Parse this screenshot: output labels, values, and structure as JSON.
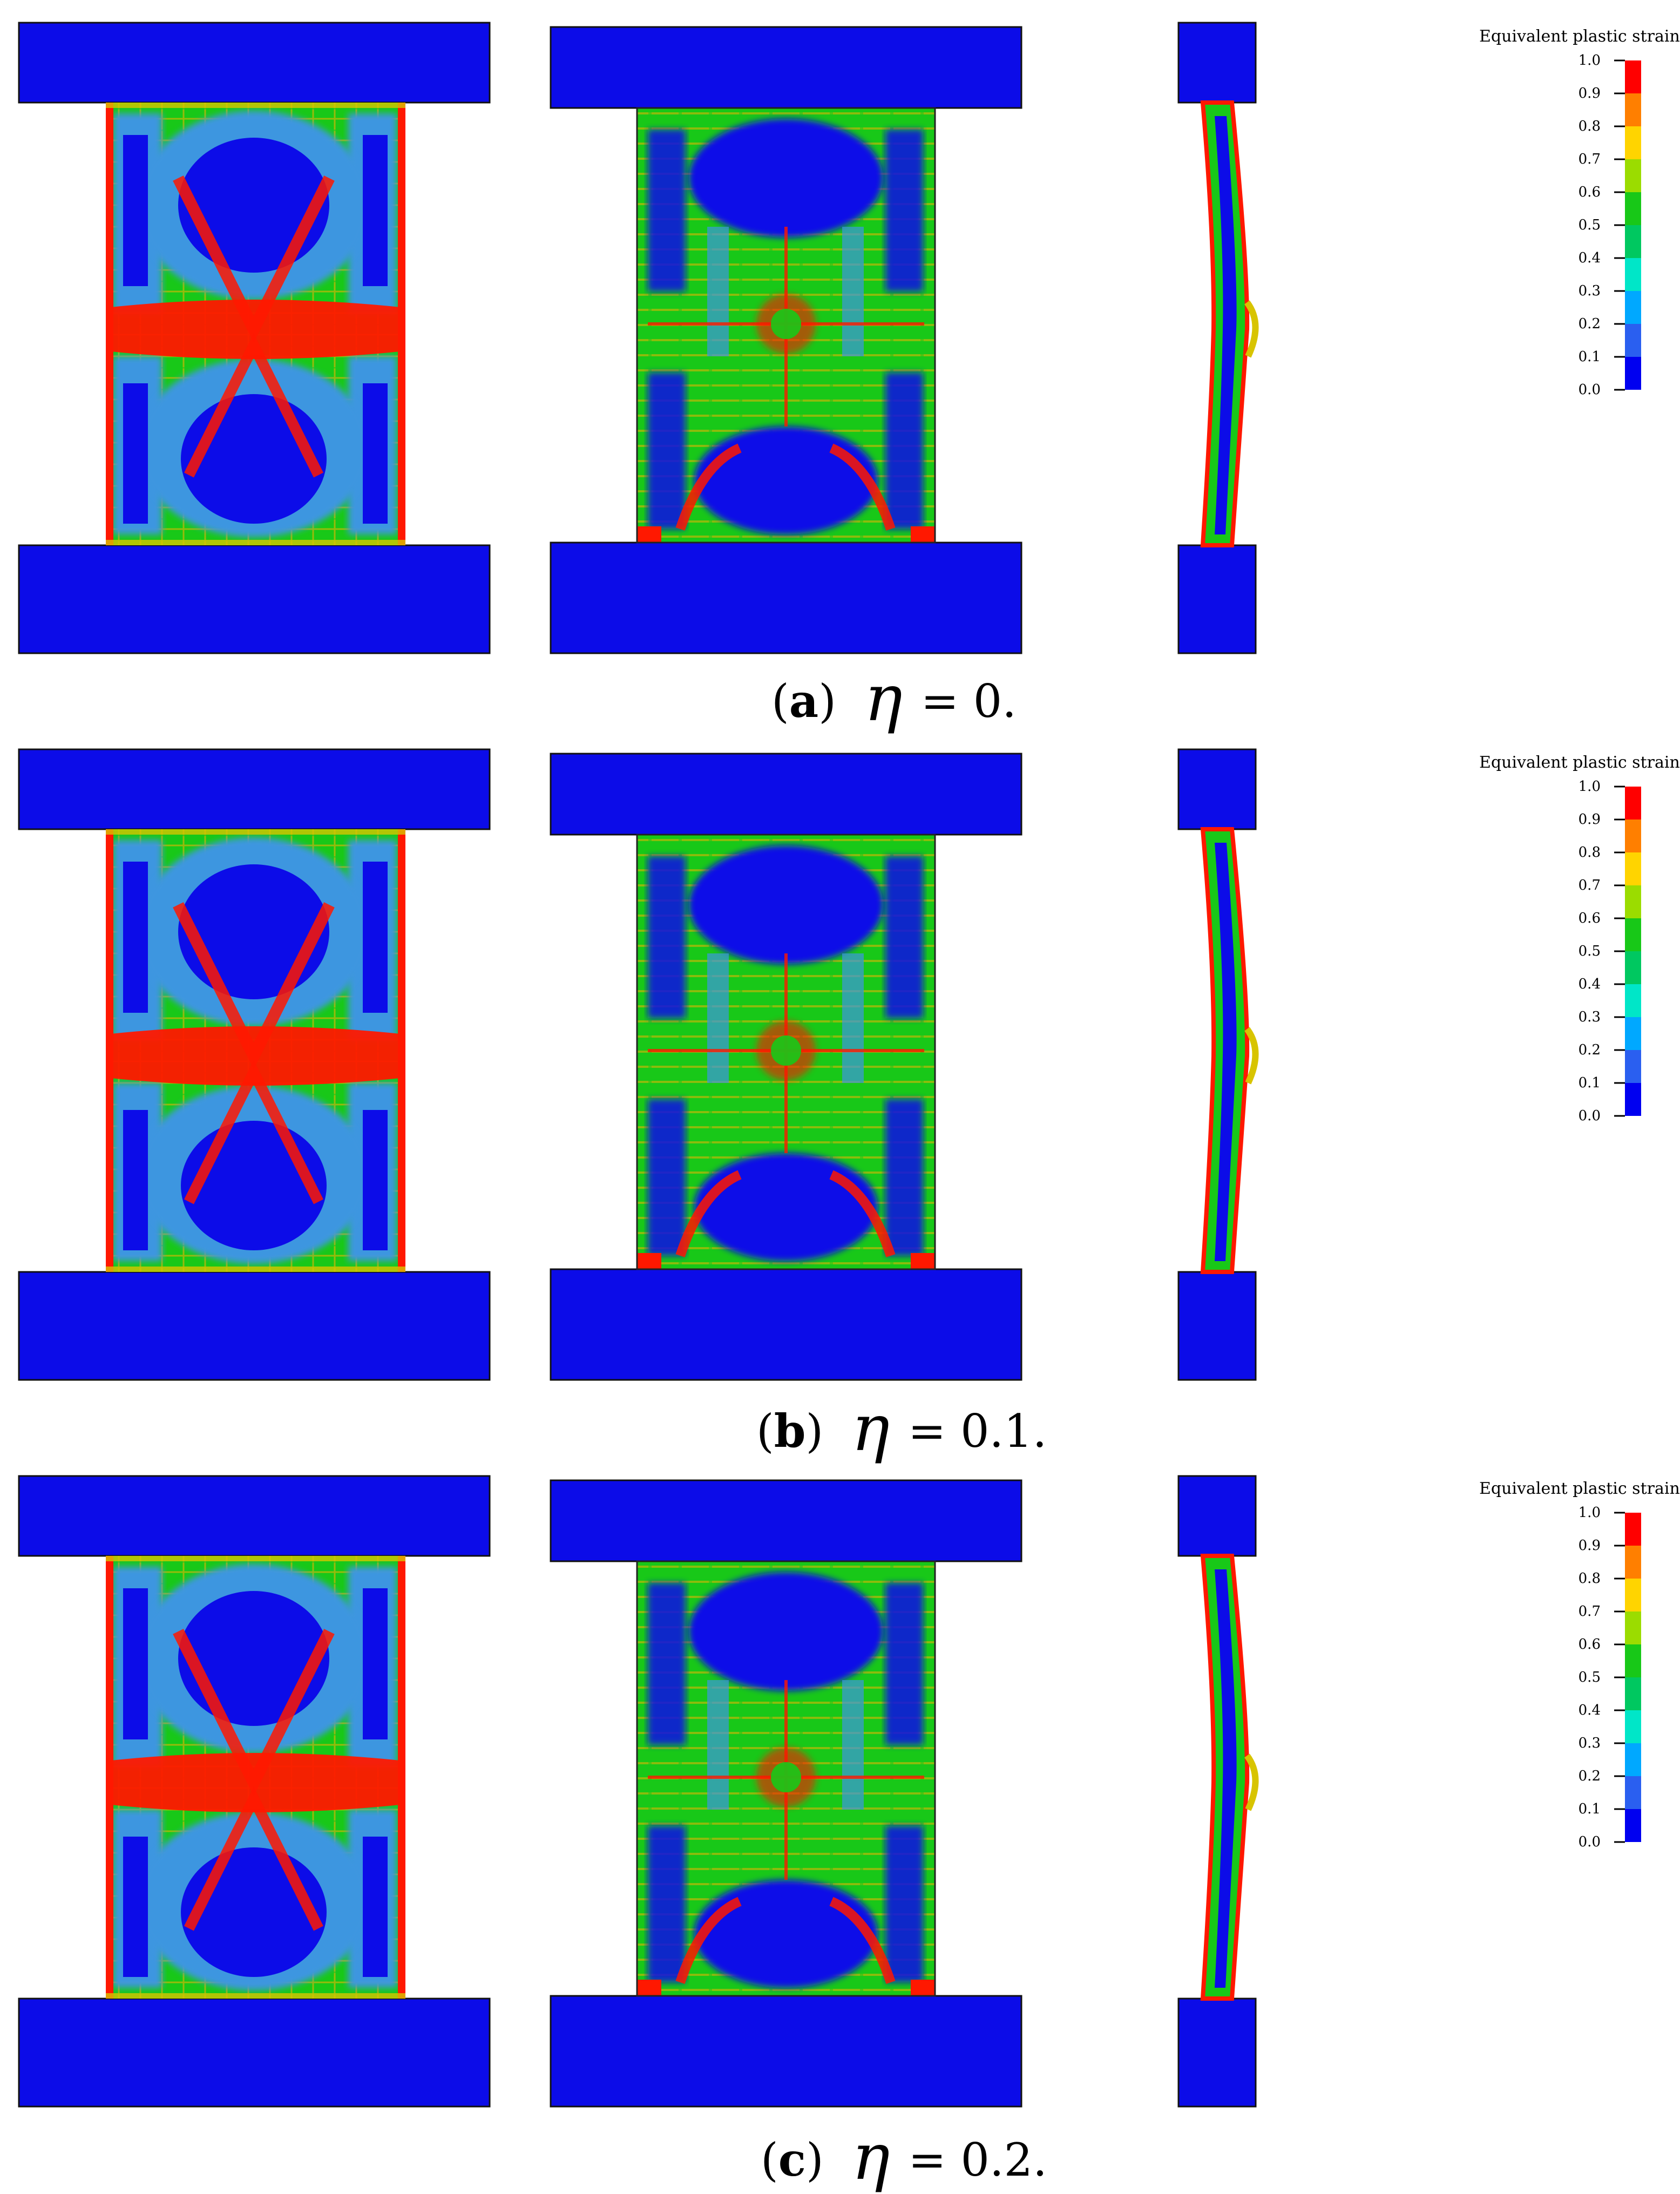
{
  "panels": [
    {
      "letter": "a",
      "eta_symbol": "η",
      "value_text": "= 0."
    },
    {
      "letter": "b",
      "eta_symbol": "η",
      "value_text": "= 0.1."
    },
    {
      "letter": "c",
      "eta_symbol": "η",
      "value_text": "= 0.2."
    }
  ],
  "legend": {
    "title": "Equivalent plastic strain",
    "ticks": [
      "1.0",
      "0.9",
      "0.8",
      "0.7",
      "0.6",
      "0.5",
      "0.4",
      "0.3",
      "0.2",
      "0.1",
      "0.0"
    ],
    "colors_top_to_bottom": [
      "#ff0000",
      "#ff7f00",
      "#ffd400",
      "#9bdc00",
      "#18c818",
      "#00c860",
      "#00e6c8",
      "#00a8ff",
      "#2a5ff0",
      "#0000f0"
    ]
  },
  "colors": {
    "plate": "#0c0ce8",
    "low": "#0c0ce8",
    "mid_low": "#3d96e0",
    "mid": "#18c818",
    "mid_high": "#d8c400",
    "high": "#ff1800"
  }
}
